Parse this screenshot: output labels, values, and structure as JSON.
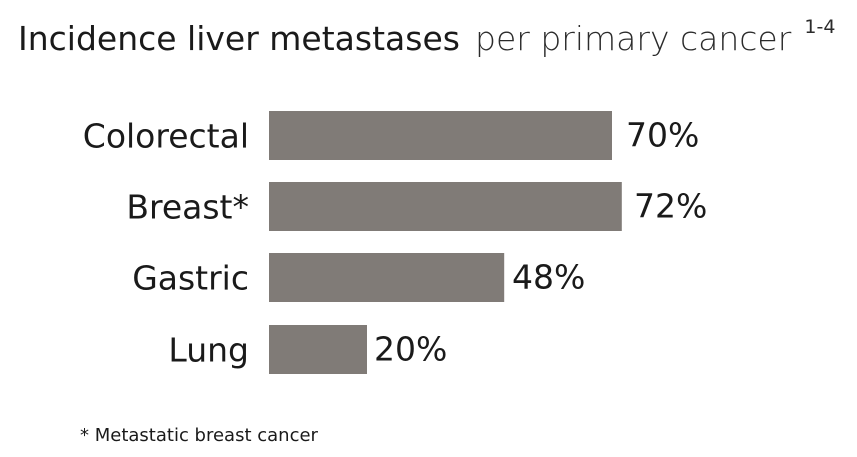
{
  "title": {
    "main": "Incidence liver metastases",
    "rest": "per primary cancer",
    "superscript": "1-4"
  },
  "footnote": "* Metastatic breast cancer",
  "colors": {
    "bar": "#807b77",
    "text": "#1a1a1a",
    "background": "#ffffff"
  },
  "chart_data": {
    "type": "bar",
    "orientation": "horizontal",
    "title": "Incidence liver metastases per primary cancer 1-4",
    "categories": [
      "Colorectal",
      "Breast*",
      "Gastric",
      "Lung"
    ],
    "values": [
      70,
      72,
      48,
      20
    ],
    "value_labels": [
      "70%",
      "72%",
      "48%",
      "20%"
    ],
    "unit": "%",
    "xlim": [
      0,
      100
    ],
    "grid": false,
    "legend": "none"
  }
}
